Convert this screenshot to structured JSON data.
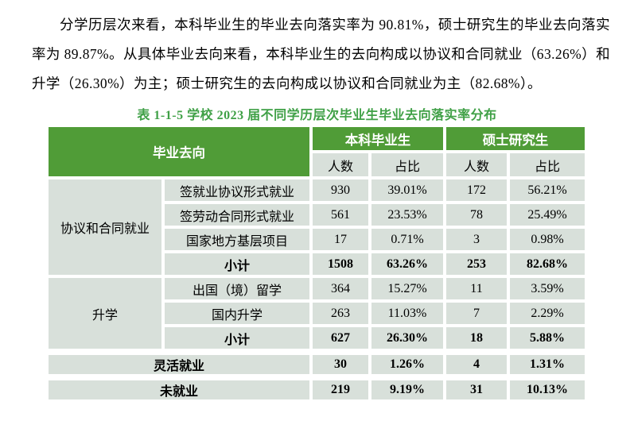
{
  "paragraph": {
    "text": "分学历层次来看，本科毕业生的毕业去向落实率为 90.81%，硕士研究生的毕业去向落实率为 89.87%。从具体毕业去向来看，本科毕业生的去向构成以协议和合同就业（63.26%）和升学（26.30%）为主；硕士研究生的去向构成以协议和合同就业为主（82.68%）。"
  },
  "table": {
    "title": "表 1-1-5  学校 2023 届不同学历层次毕业生毕业去向落实率分布",
    "colors": {
      "header_green": "#509C37",
      "cell_background": "#D8E0DA",
      "title_green": "#3FA046",
      "header_text": "#FFFFFF",
      "body_text": "#000000"
    },
    "header": {
      "col1": "毕业去向",
      "group1": "本科毕业生",
      "group2": "硕士研究生",
      "sub": [
        "人数",
        "占比",
        "人数",
        "占比"
      ]
    },
    "rows": [
      {
        "group": "协议和合同就业",
        "group_rowspan": 4,
        "label": "签就业协议形式就业",
        "values": [
          "930",
          "39.01%",
          "172",
          "56.21%"
        ],
        "bold": false
      },
      {
        "label": "签劳动合同形式就业",
        "values": [
          "561",
          "23.53%",
          "78",
          "25.49%"
        ],
        "bold": false
      },
      {
        "label": "国家地方基层项目",
        "values": [
          "17",
          "0.71%",
          "3",
          "0.98%"
        ],
        "bold": false
      },
      {
        "label": "小计",
        "values": [
          "1508",
          "63.26%",
          "253",
          "82.68%"
        ],
        "bold": true
      },
      {
        "group": "升学",
        "group_rowspan": 3,
        "label": "出国（境）留学",
        "values": [
          "364",
          "15.27%",
          "11",
          "3.59%"
        ],
        "bold": false
      },
      {
        "label": "国内升学",
        "values": [
          "263",
          "11.03%",
          "7",
          "2.29%"
        ],
        "bold": false
      },
      {
        "label": "小计",
        "values": [
          "627",
          "26.30%",
          "18",
          "5.88%"
        ],
        "bold": true
      },
      {
        "label": "灵活就业",
        "label_colspan": 2,
        "values": [
          "30",
          "1.26%",
          "4",
          "1.31%"
        ],
        "bold": true,
        "gap_top": true
      },
      {
        "label": "未就业",
        "label_colspan": 2,
        "values": [
          "219",
          "9.19%",
          "31",
          "10.13%"
        ],
        "bold": true,
        "gap_top": true
      }
    ]
  }
}
